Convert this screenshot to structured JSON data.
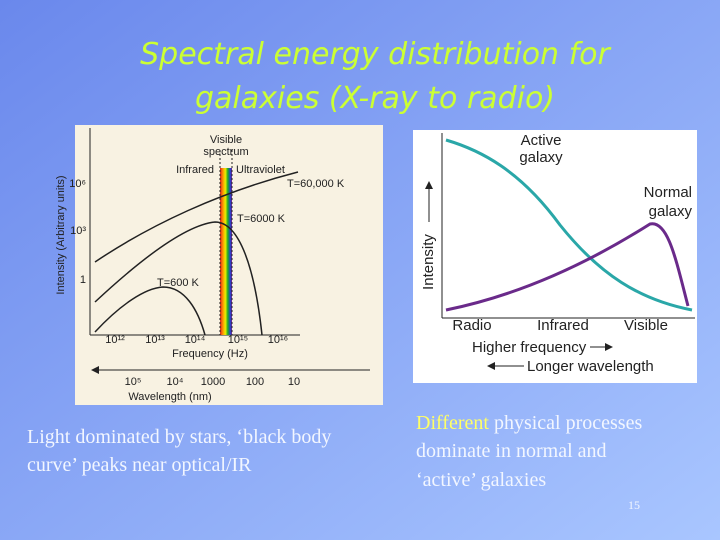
{
  "title": {
    "lines": [
      "Spectral energy distribution for",
      "galaxies (X-ray to radio)"
    ]
  },
  "left_figure": {
    "visible_label": [
      "Visible",
      "spectrum"
    ],
    "band_labels": [
      "Infrared",
      "Ultraviolet"
    ],
    "curve_labels": [
      "T=60,000 K",
      "T=6000 K",
      "T=600 K"
    ],
    "y_axis_label": "Intensity (Arbitrary units)",
    "y_ticks": [
      "10⁶",
      "10³",
      "1"
    ],
    "frequency_ticks": [
      "10¹²",
      "10¹³",
      "10¹⁴",
      "10¹⁵",
      "10¹⁶"
    ],
    "frequency_label": "Frequency (Hz)",
    "wavelength_ticks": [
      "10⁵",
      "10⁴",
      "1000",
      "100",
      "10"
    ],
    "wavelength_label": "Wavelength (nm)"
  },
  "right_figure": {
    "active_label": [
      "Active",
      "galaxy"
    ],
    "normal_label": [
      "Normal",
      "galaxy"
    ],
    "y_axis_label": "Intensity",
    "bands": [
      "Radio",
      "Infrared",
      "Visible"
    ],
    "higher_frequency": "Higher frequency",
    "longer_wavelength": "Longer wavelength"
  },
  "caption_left": {
    "lines": [
      "Light dominated by stars, ‘black body",
      "curve’ peaks near optical/IR"
    ]
  },
  "caption_right": {
    "highlight": "Different",
    "lines": [
      "physical processes",
      "dominate in normal and",
      "‘active’ galaxies"
    ]
  },
  "page_number": "15"
}
